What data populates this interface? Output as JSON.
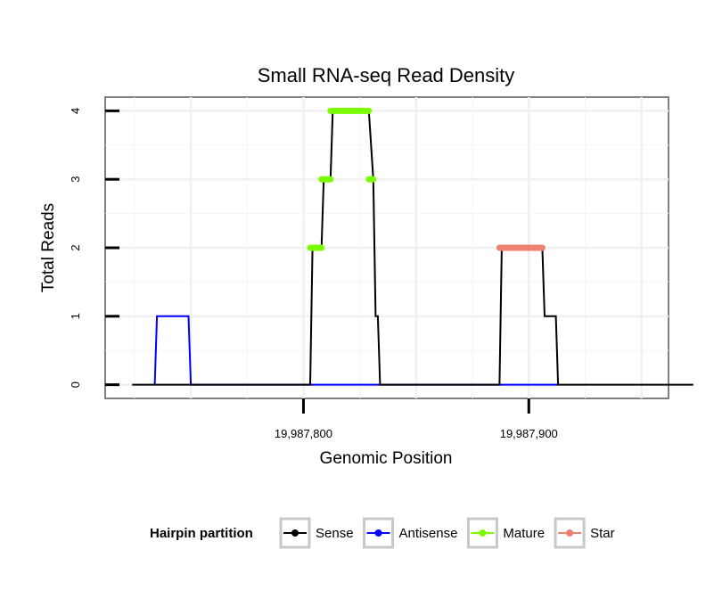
{
  "chart_data": {
    "type": "line",
    "title": "Small RNA-seq Read Density",
    "xlabel": "Genomic Position",
    "ylabel": "Total Reads",
    "xlim": [
      19987712,
      19987962
    ],
    "ylim": [
      -0.2,
      4.2
    ],
    "x_ticks": [
      {
        "value": 19987800,
        "label": "19,987,800"
      },
      {
        "value": 19987900,
        "label": "19,987,900"
      }
    ],
    "y_ticks": [
      {
        "value": 0,
        "label": "0"
      },
      {
        "value": 1,
        "label": "1"
      },
      {
        "value": 2,
        "label": "2"
      },
      {
        "value": 3,
        "label": "3"
      },
      {
        "value": 4,
        "label": "4"
      }
    ],
    "grid": true,
    "legend": {
      "title": "Hairpin partition",
      "placement": "bottom",
      "items": [
        {
          "label": "Sense",
          "color": "#000000"
        },
        {
          "label": "Antisense",
          "color": "#0000ff"
        },
        {
          "label": "Mature",
          "color": "#7cfc00"
        },
        {
          "label": "Star",
          "color": "#f08070"
        }
      ]
    },
    "series": [
      {
        "name": "Sense",
        "color": "#000000",
        "points": [
          [
            19987724,
            0
          ],
          [
            19987803,
            0
          ],
          [
            19987804,
            2
          ],
          [
            19987808,
            2
          ],
          [
            19987809,
            3
          ],
          [
            19987812,
            3
          ],
          [
            19987813,
            4
          ],
          [
            19987829,
            4
          ],
          [
            19987831,
            3
          ],
          [
            19987832,
            1
          ],
          [
            19987833,
            1
          ],
          [
            19987834,
            0
          ],
          [
            19987887,
            0
          ],
          [
            19987888,
            2
          ],
          [
            19987906,
            2
          ],
          [
            19987907,
            1
          ],
          [
            19987912,
            1
          ],
          [
            19987913,
            0
          ],
          [
            19987973,
            0
          ]
        ]
      },
      {
        "name": "Antisense",
        "color": "#0000ff",
        "points": [
          [
            19987734,
            0
          ],
          [
            19987735,
            1
          ],
          [
            19987749,
            1
          ],
          [
            19987750,
            0
          ],
          [
            19987804,
            0
          ],
          [
            19987834,
            0
          ],
          [
            19987888,
            0
          ],
          [
            19987913,
            0
          ]
        ]
      },
      {
        "name": "Mature",
        "color": "#7cfc00",
        "segments": [
          {
            "y": 2,
            "x": [
              19987803,
              19987808
            ]
          },
          {
            "y": 3,
            "x": [
              19987808,
              19987812
            ]
          },
          {
            "y": 4,
            "x": [
              19987812,
              19987829
            ]
          },
          {
            "y": 3,
            "x": [
              19987829,
              19987831
            ]
          }
        ]
      },
      {
        "name": "Star",
        "color": "#f08070",
        "segments": [
          {
            "y": 2,
            "x": [
              19987887,
              19987906
            ]
          }
        ]
      }
    ]
  }
}
